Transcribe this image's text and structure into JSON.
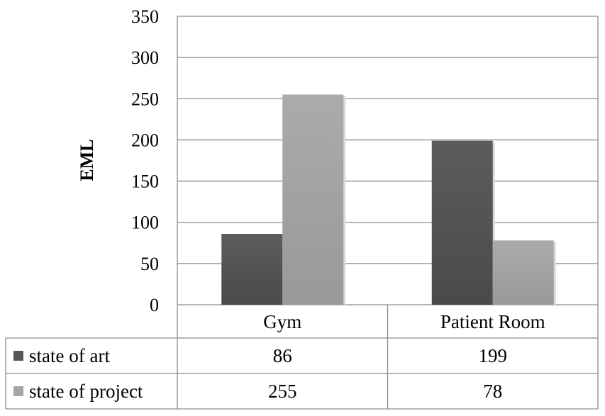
{
  "chart_data": {
    "type": "bar",
    "title": "",
    "xlabel": "",
    "ylabel": "EML",
    "ylim": [
      0,
      350
    ],
    "yticks": [
      0,
      50,
      100,
      150,
      200,
      250,
      300,
      350
    ],
    "grid": true,
    "legend": "data-table",
    "categories": [
      "Gym",
      "Patient Room"
    ],
    "series": [
      {
        "name": "state of art",
        "values": [
          86,
          199
        ],
        "color": "#555555"
      },
      {
        "name": "state of project",
        "values": [
          255,
          78
        ],
        "color": "#a6a6a6"
      }
    ]
  }
}
